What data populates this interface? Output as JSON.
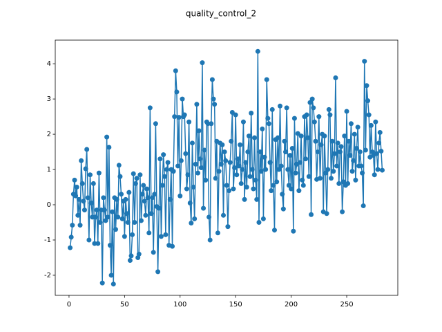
{
  "chart_data": {
    "type": "line",
    "title": "quality_control_2",
    "x": [
      1,
      2,
      3,
      4,
      5,
      6,
      7,
      8,
      9,
      10,
      11,
      12,
      13,
      14,
      15,
      16,
      17,
      18,
      19,
      20,
      21,
      22,
      23,
      24,
      25,
      26,
      27,
      28,
      29,
      30,
      31,
      32,
      33,
      34,
      35,
      36,
      37,
      38,
      39,
      40,
      41,
      42,
      43,
      44,
      45,
      46,
      47,
      48,
      49,
      50,
      51,
      52,
      53,
      54,
      55,
      56,
      57,
      58,
      59,
      60,
      61,
      62,
      63,
      64,
      65,
      66,
      67,
      68,
      69,
      70,
      71,
      72,
      73,
      74,
      75,
      76,
      77,
      78,
      79,
      80,
      81,
      82,
      83,
      84,
      85,
      86,
      87,
      88,
      89,
      90,
      91,
      92,
      93,
      94,
      95,
      96,
      97,
      98,
      99,
      100,
      101,
      102,
      103,
      104,
      105,
      106,
      107,
      108,
      109,
      110,
      111,
      112,
      113,
      114,
      115,
      116,
      117,
      118,
      119,
      120,
      121,
      122,
      123,
      124,
      125,
      126,
      127,
      128,
      129,
      130,
      131,
      132,
      133,
      134,
      135,
      136,
      137,
      138,
      139,
      140,
      141,
      142,
      143,
      144,
      145,
      146,
      147,
      148,
      149,
      150,
      151,
      152,
      153,
      154,
      155,
      156,
      157,
      158,
      159,
      160,
      161,
      162,
      163,
      164,
      165,
      166,
      167,
      168,
      169,
      170,
      171,
      172,
      173,
      174,
      175,
      176,
      177,
      178,
      179,
      180,
      181,
      182,
      183,
      184,
      185,
      186,
      187,
      188,
      189,
      190,
      191,
      192,
      193,
      194,
      195,
      196,
      197,
      198,
      199,
      200,
      201,
      202,
      203,
      204,
      205,
      206,
      207,
      208,
      209,
      210,
      211,
      212,
      213,
      214,
      215,
      216,
      217,
      218,
      219,
      220,
      221,
      222,
      223,
      224,
      225,
      226,
      227,
      228,
      229,
      230,
      231,
      232,
      233,
      234,
      235,
      236,
      237,
      238,
      239,
      240,
      241,
      242,
      243,
      244,
      245,
      246,
      247,
      248,
      249,
      250,
      251,
      252,
      253,
      254,
      255,
      256,
      257,
      258,
      259,
      260,
      261,
      262,
      263,
      264,
      265,
      266,
      267,
      268,
      269,
      270,
      271,
      272,
      273,
      274,
      275,
      276,
      277,
      278,
      279,
      280,
      281,
      282
    ],
    "series": [
      {
        "color": "#1f77b4",
        "values": [
          -1.22,
          -0.92,
          -0.58,
          0.3,
          0.7,
          0.25,
          0.5,
          -0.3,
          0.15,
          -0.58,
          1.25,
          0.6,
          0.1,
          -0.15,
          1.02,
          1.57,
          0.2,
          -1.0,
          0.85,
          0.05,
          -0.35,
          0.6,
          -1.1,
          -0.35,
          -0.15,
          -1.1,
          0.9,
          -0.5,
          -0.15,
          -2.22,
          0.2,
          -0.15,
          -0.45,
          1.92,
          -0.35,
          1.63,
          -1.15,
          -2.0,
          -0.2,
          -2.25,
          0.2,
          -0.7,
          0.15,
          -0.35,
          1.12,
          0.8,
          0.3,
          -0.4,
          0.1,
          -0.9,
          0.15,
          -0.25,
          -0.5,
          0.35,
          -1.58,
          -1.45,
          -0.85,
          0.88,
          -0.5,
          0.6,
          0.75,
          -1.5,
          -1.4,
          0.85,
          -0.45,
          0.3,
          0.55,
          0.1,
          -0.3,
          0.45,
          0.2,
          -0.8,
          2.75,
          -0.25,
          0.2,
          -1.35,
          0.3,
          2.3,
          -0.05,
          -1.9,
          -0.1,
          1.3,
          -0.9,
          0.55,
          1.42,
          0.8,
          -0.85,
          1.0,
          1.2,
          -1.15,
          0.15,
          1.0,
          -1.18,
          0.95,
          2.5,
          3.8,
          3.2,
          1.1,
          2.48,
          0.25,
          1.25,
          3.0,
          2.5,
          2.55,
          1.45,
          0.45,
          0.85,
          2.35,
          0.05,
          -0.52,
          1.75,
          0.5,
          -0.4,
          1.15,
          2.85,
          0.9,
          2.1,
          1.3,
          1.05,
          4.03,
          -0.1,
          1.55,
          0.7,
          2.35,
          2.3,
          -0.35,
          -1.0,
          2.3,
          3.55,
          3.0,
          2.85,
          0.75,
          1.8,
          -0.8,
          0.95,
          1.75,
          1.15,
          1.7,
          -0.3,
          1.5,
          1.25,
          0.55,
          -0.62,
          0.4,
          1.2,
          1.8,
          2.62,
          0.45,
          1.05,
          2.55,
          0.85,
          1.3,
          1.1,
          1.7,
          0.6,
          1.0,
          2.35,
          0.15,
          1.2,
          0.5,
          1.5,
          1.95,
          0.8,
          2.6,
          1.0,
          0.45,
          1.9,
          0.7,
          0.15,
          4.35,
          -0.5,
          1.5,
          0.95,
          2.15,
          -0.4,
          1.35,
          1.0,
          3.55,
          2.45,
          2.3,
          1.2,
          0.4,
          2.7,
          0.55,
          -0.72,
          1.85,
          0.65,
          1.9,
          1.0,
          2.8,
          1.1,
          0.3,
          -0.12,
          1.8,
          1.5,
          2.75,
          1.0,
          0.55,
          1.4,
          0.45,
          1.6,
          -0.75,
          2.45,
          0.9,
          1.15,
          2.02,
          0.4,
          1.2,
          1.95,
          0.7,
          0.55,
          2.5,
          1.3,
          2.55,
          1.9,
          0.8,
          2.9,
          -0.28,
          3.0,
          2.75,
          2.35,
          1.8,
          0.72,
          1.5,
          2.5,
          0.75,
          1.7,
          2.0,
          -0.2,
          1.95,
          0.9,
          -0.25,
          1.0,
          2.7,
          2.55,
          0.75,
          1.8,
          0.95,
          1.45,
          3.6,
          1.1,
          1.75,
          0.6,
          1.5,
          1.65,
          -0.2,
          0.65,
          1.95,
          0.55,
          2.65,
          0.6,
          1.8,
          1.4,
          2.3,
          0.95,
          1.25,
          2.0,
          0.7,
          1.6,
          2.2,
          1.1,
          1.5,
          1.1,
          0.9,
          -0.03,
          4.07,
          1.55,
          3.38,
          2.95,
          2.55,
          1.35,
          2.25,
          1.5,
          1.4,
          0.85,
          2.35,
          1.45,
          1.0,
          1.75,
          2.05,
          1.52,
          0.98
        ]
      }
    ],
    "xlim": [
      -12.4,
      296
    ],
    "ylim": [
      -2.57,
      4.67
    ],
    "xticks": [
      0,
      50,
      100,
      150,
      200,
      250
    ],
    "yticks": [
      -2,
      -1,
      0,
      1,
      2,
      3,
      4
    ]
  }
}
